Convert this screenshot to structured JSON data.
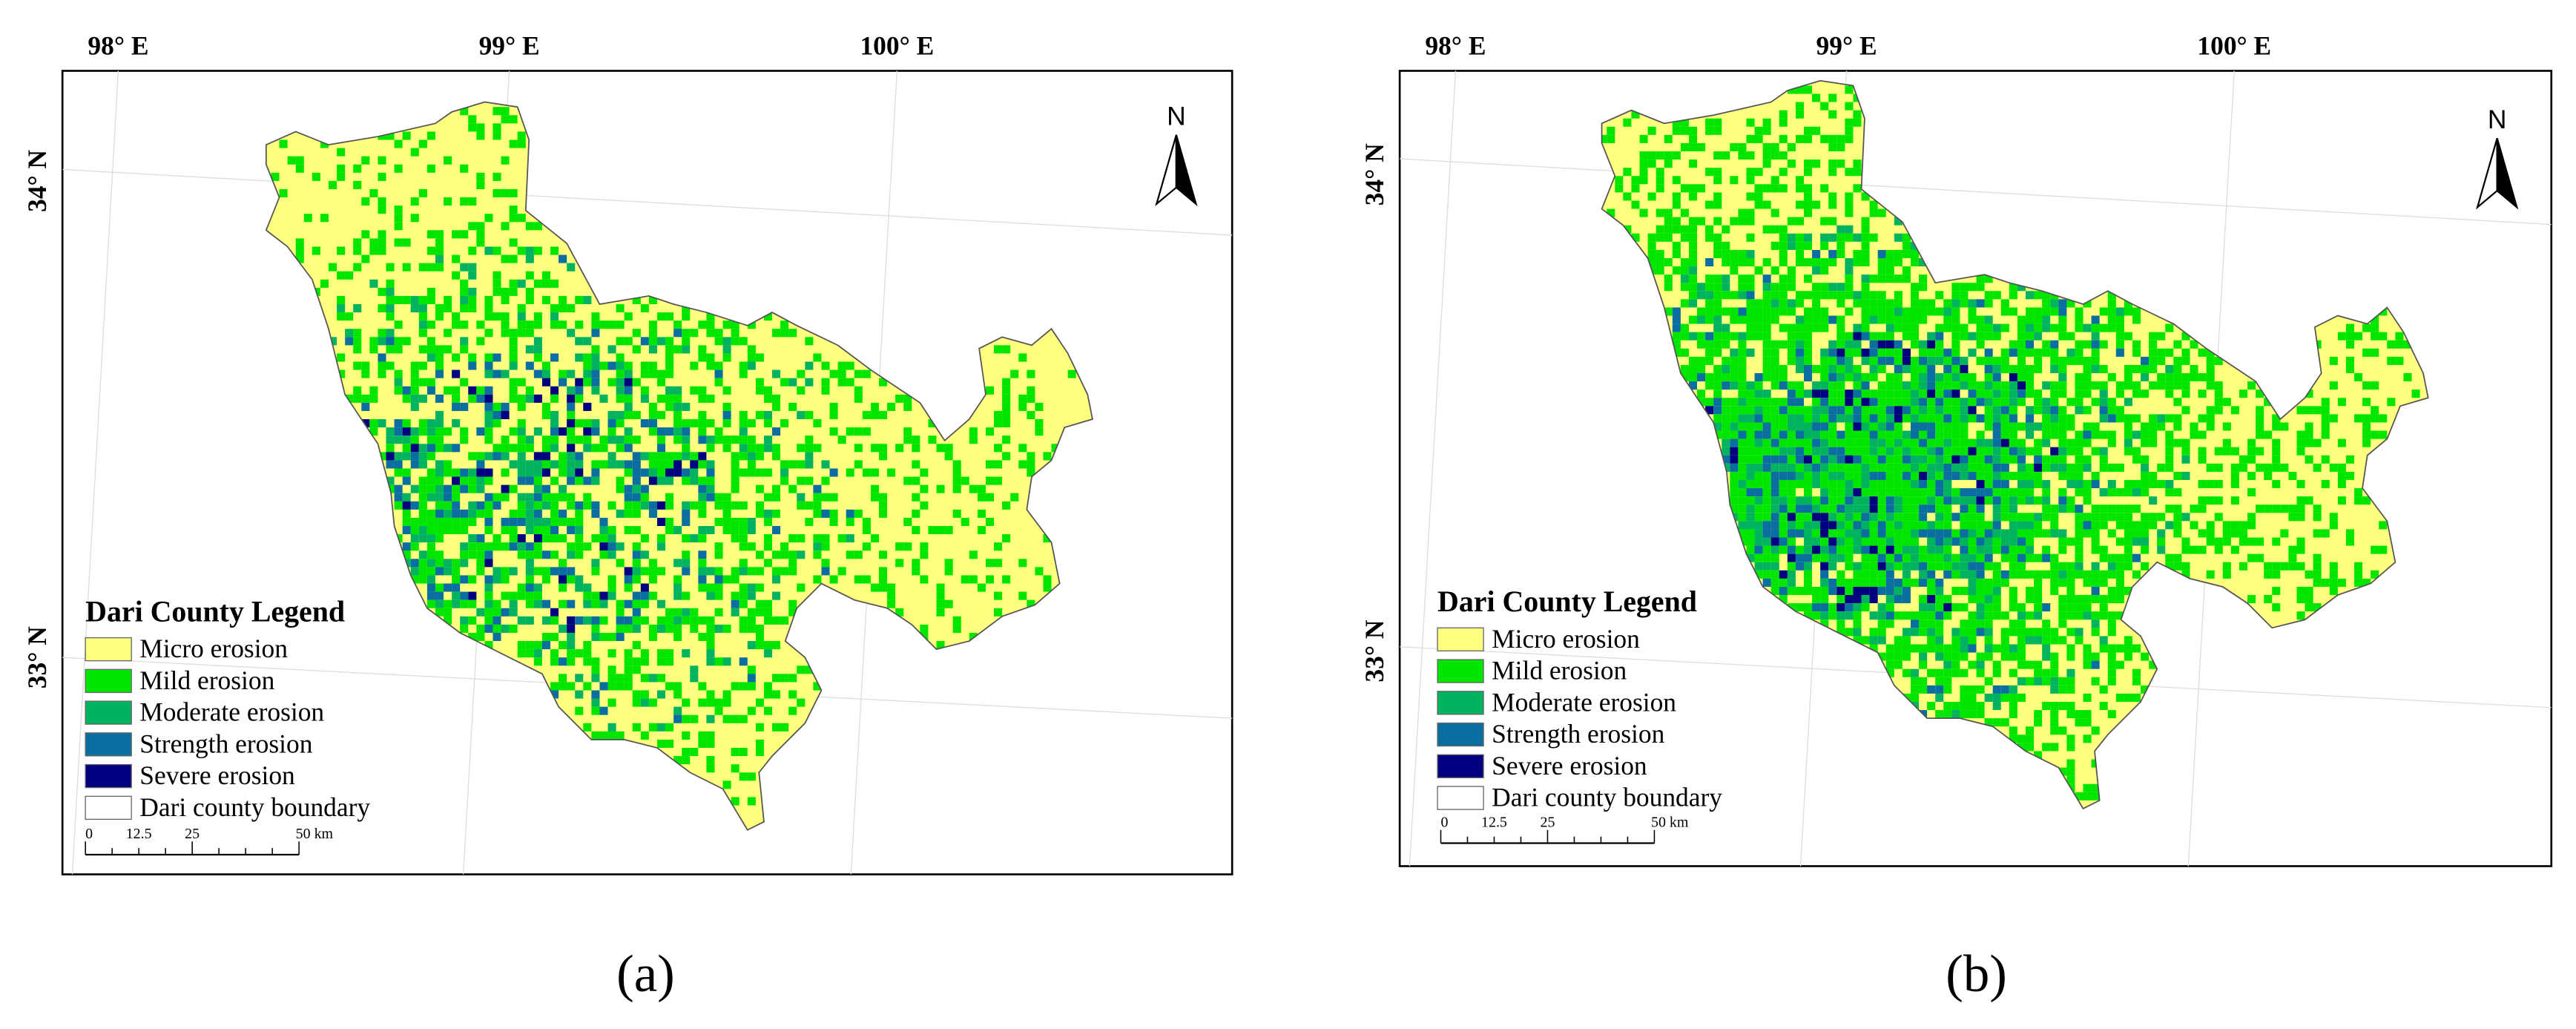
{
  "panels": [
    {
      "top_labels": [
        "98° E",
        "99° E",
        "100° E"
      ],
      "left_labels": [
        "34° N",
        "33° N"
      ],
      "north": "N",
      "legend": {
        "title": "Dari County Legend",
        "items": [
          {
            "label": "Micro erosion",
            "color": "#ffff80"
          },
          {
            "label": "Mild erosion",
            "color": "#00e600"
          },
          {
            "label": "Moderate erosion",
            "color": "#00b35f"
          },
          {
            "label": "Strength erosion",
            "color": "#0a6fa0"
          },
          {
            "label": "Severe erosion",
            "color": "#000080"
          },
          {
            "label": "Dari county boundary",
            "color": "#ffffff"
          }
        ]
      },
      "scale_bar": [
        "0",
        "12.5",
        "25",
        "50 km"
      ],
      "caption": "(a)"
    },
    {
      "top_labels": [
        "98° E",
        "99° E",
        "100° E"
      ],
      "left_labels": [
        "34° N",
        "33° N"
      ],
      "north": "N",
      "legend": {
        "title": "Dari County Legend",
        "items": [
          {
            "label": "Micro erosion",
            "color": "#ffff80"
          },
          {
            "label": "Mild erosion",
            "color": "#00e600"
          },
          {
            "label": "Moderate erosion",
            "color": "#00b35f"
          },
          {
            "label": "Strength erosion",
            "color": "#0a6fa0"
          },
          {
            "label": "Severe erosion",
            "color": "#000080"
          },
          {
            "label": "Dari county boundary",
            "color": "#ffffff"
          }
        ]
      },
      "scale_bar": [
        "0",
        "12.5",
        "25",
        "50 km"
      ],
      "caption": "(b)"
    }
  ]
}
